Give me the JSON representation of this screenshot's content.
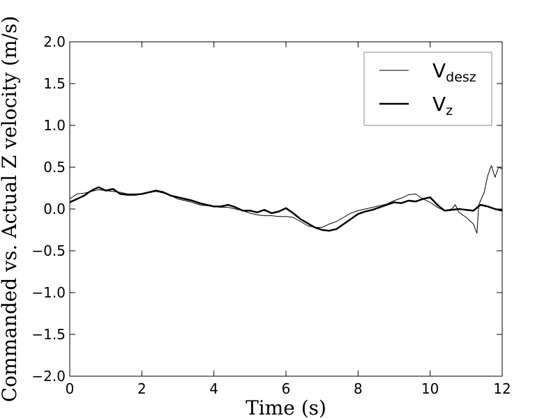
{
  "chart_data": {
    "type": "line",
    "xlabel": "Time (s)",
    "ylabel": "Commanded vs. Actual Z velocity (m/s)",
    "xlim": [
      0,
      12
    ],
    "ylim": [
      -2.0,
      2.0
    ],
    "xticks": [
      "0",
      "2",
      "4",
      "6",
      "8",
      "10",
      "12"
    ],
    "yticks": [
      "2.0",
      "1.5",
      "1.0",
      "0.5",
      "0.0",
      "−0.5",
      "−1.0",
      "−1.5",
      "−2.0"
    ],
    "grid": false,
    "legend_position": "top-right",
    "legend": [
      {
        "main": "V",
        "sub": "desz"
      },
      {
        "main": "V",
        "sub": "z"
      }
    ],
    "series": [
      {
        "x": [
          0,
          0.2,
          0.4,
          0.6,
          0.8,
          1.0,
          1.2,
          1.4,
          1.6,
          1.8,
          2.0,
          2.2,
          2.4,
          2.6,
          2.8,
          3.0,
          3.2,
          3.4,
          3.6,
          3.8,
          4.0,
          4.2,
          4.4,
          4.6,
          4.8,
          5.0,
          5.2,
          5.4,
          5.6,
          5.8,
          6.0,
          6.2,
          6.4,
          6.6,
          6.8,
          7.0,
          7.2,
          7.4,
          7.6,
          7.8,
          8.0,
          8.2,
          8.4,
          8.6,
          8.8,
          9.0,
          9.2,
          9.4,
          9.6,
          9.8,
          10.0,
          10.2,
          10.4,
          10.6,
          10.7,
          10.8,
          11.0,
          11.2,
          11.3,
          11.35,
          11.5,
          11.6,
          11.7,
          11.8,
          11.9,
          12.0
        ],
        "values": [
          0.12,
          0.18,
          0.19,
          0.21,
          0.23,
          0.22,
          0.21,
          0.2,
          0.18,
          0.18,
          0.18,
          0.2,
          0.21,
          0.19,
          0.16,
          0.12,
          0.1,
          0.08,
          0.05,
          0.04,
          0.03,
          0.02,
          0.02,
          0.0,
          -0.02,
          -0.05,
          -0.07,
          -0.08,
          -0.08,
          -0.09,
          -0.09,
          -0.1,
          -0.15,
          -0.2,
          -0.22,
          -0.22,
          -0.18,
          -0.15,
          -0.1,
          -0.05,
          -0.02,
          0.0,
          0.02,
          0.04,
          0.06,
          0.1,
          0.13,
          0.17,
          0.18,
          0.12,
          0.08,
          0.02,
          -0.02,
          0.0,
          0.05,
          -0.04,
          -0.1,
          -0.18,
          -0.29,
          0.05,
          0.2,
          0.4,
          0.52,
          0.38,
          0.5,
          0.48
        ]
      },
      {
        "x": [
          0,
          0.2,
          0.4,
          0.6,
          0.8,
          1.0,
          1.2,
          1.4,
          1.6,
          1.8,
          2.0,
          2.2,
          2.4,
          2.6,
          2.8,
          3.0,
          3.2,
          3.4,
          3.6,
          3.8,
          4.0,
          4.2,
          4.4,
          4.6,
          4.8,
          5.0,
          5.2,
          5.4,
          5.6,
          5.8,
          6.0,
          6.2,
          6.4,
          6.6,
          6.8,
          7.0,
          7.2,
          7.4,
          7.6,
          7.8,
          8.0,
          8.2,
          8.4,
          8.6,
          8.8,
          9.0,
          9.2,
          9.4,
          9.6,
          9.8,
          10.0,
          10.2,
          10.4,
          10.6,
          10.8,
          11.0,
          11.2,
          11.4,
          11.6,
          11.8,
          12.0
        ],
        "values": [
          0.08,
          0.12,
          0.16,
          0.22,
          0.26,
          0.22,
          0.24,
          0.18,
          0.17,
          0.17,
          0.18,
          0.2,
          0.22,
          0.2,
          0.16,
          0.14,
          0.12,
          0.1,
          0.07,
          0.05,
          0.03,
          0.03,
          0.05,
          0.02,
          -0.02,
          -0.02,
          -0.04,
          -0.01,
          -0.05,
          -0.03,
          0.01,
          -0.05,
          -0.12,
          -0.17,
          -0.22,
          -0.25,
          -0.26,
          -0.24,
          -0.18,
          -0.12,
          -0.06,
          -0.03,
          -0.01,
          0.02,
          0.05,
          0.08,
          0.07,
          0.1,
          0.09,
          0.12,
          0.14,
          0.05,
          -0.02,
          -0.01,
          0.0,
          -0.01,
          -0.02,
          0.05,
          0.03,
          0.0,
          -0.02
        ]
      }
    ]
  }
}
